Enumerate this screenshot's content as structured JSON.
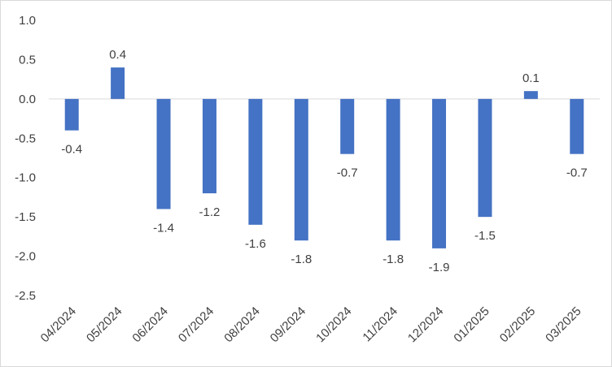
{
  "chart_data": {
    "type": "bar",
    "title": "",
    "xlabel": "",
    "ylabel": "",
    "categories": [
      "04/2024",
      "05/2024",
      "06/2024",
      "07/2024",
      "08/2024",
      "09/2024",
      "10/2024",
      "11/2024",
      "12/2024",
      "01/2025",
      "02/2025",
      "03/2025"
    ],
    "values": [
      -0.4,
      0.4,
      -1.4,
      -1.2,
      -1.6,
      -1.8,
      -0.7,
      -1.8,
      -1.9,
      -1.5,
      0.1,
      -0.7
    ],
    "data_labels": [
      "-0.4",
      "0.4",
      "-1.4",
      "-1.2",
      "-1.6",
      "-1.8",
      "-0.7",
      "-1.8",
      "-1.9",
      "-1.5",
      "0.1",
      "-0.7"
    ],
    "ylim": [
      -2.5,
      1.0
    ],
    "y_ticks": [
      "1.0",
      "0.5",
      "0.0",
      "-0.5",
      "-1.0",
      "-1.5",
      "-2.0",
      "-2.5"
    ],
    "grid": false,
    "legend": "none",
    "bar_color": "#4472c4",
    "axis_color": "#d9d9d9",
    "text_color": "#404040"
  }
}
